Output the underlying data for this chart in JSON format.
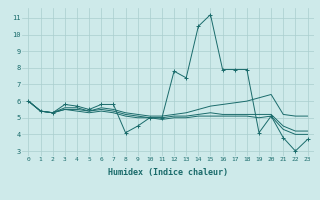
{
  "xlabel": "Humidex (Indice chaleur)",
  "bg_color": "#ceeaea",
  "grid_color": "#aacece",
  "line_color": "#1a6b6b",
  "xlim": [
    -0.5,
    23.5
  ],
  "ylim": [
    2.7,
    11.6
  ],
  "yticks": [
    3,
    4,
    5,
    6,
    7,
    8,
    9,
    10,
    11
  ],
  "xticks": [
    0,
    1,
    2,
    3,
    4,
    5,
    6,
    7,
    8,
    9,
    10,
    11,
    12,
    13,
    14,
    15,
    16,
    17,
    18,
    19,
    20,
    21,
    22,
    23
  ],
  "series": [
    {
      "x": [
        0,
        1,
        2,
        3,
        4,
        5,
        6,
        7,
        8,
        9,
        10,
        11,
        12,
        13,
        14,
        15,
        16,
        17,
        18,
        19,
        20,
        21,
        22,
        23
      ],
      "y": [
        6.0,
        5.4,
        5.3,
        5.8,
        5.7,
        5.5,
        5.8,
        5.8,
        4.1,
        4.5,
        5.0,
        5.0,
        7.8,
        7.4,
        10.5,
        11.2,
        7.9,
        7.9,
        7.9,
        4.1,
        5.1,
        3.8,
        3.0,
        3.7
      ],
      "marker": "+"
    },
    {
      "x": [
        0,
        1,
        2,
        3,
        4,
        5,
        6,
        7,
        8,
        9,
        10,
        11,
        12,
        13,
        14,
        15,
        16,
        17,
        18,
        19,
        20,
        21,
        22,
        23
      ],
      "y": [
        6.0,
        5.4,
        5.3,
        5.6,
        5.6,
        5.4,
        5.6,
        5.5,
        5.3,
        5.2,
        5.1,
        5.1,
        5.2,
        5.3,
        5.5,
        5.7,
        5.8,
        5.9,
        6.0,
        6.2,
        6.4,
        5.2,
        5.1,
        5.1
      ],
      "marker": null
    },
    {
      "x": [
        0,
        1,
        2,
        3,
        4,
        5,
        6,
        7,
        8,
        9,
        10,
        11,
        12,
        13,
        14,
        15,
        16,
        17,
        18,
        19,
        20,
        21,
        22,
        23
      ],
      "y": [
        6.0,
        5.4,
        5.3,
        5.5,
        5.5,
        5.4,
        5.5,
        5.4,
        5.2,
        5.1,
        5.0,
        5.0,
        5.1,
        5.1,
        5.2,
        5.3,
        5.2,
        5.2,
        5.2,
        5.2,
        5.2,
        4.5,
        4.2,
        4.2
      ],
      "marker": null
    },
    {
      "x": [
        0,
        1,
        2,
        3,
        4,
        5,
        6,
        7,
        8,
        9,
        10,
        11,
        12,
        13,
        14,
        15,
        16,
        17,
        18,
        19,
        20,
        21,
        22,
        23
      ],
      "y": [
        6.0,
        5.4,
        5.3,
        5.5,
        5.4,
        5.3,
        5.4,
        5.3,
        5.1,
        5.0,
        5.0,
        4.9,
        5.0,
        5.0,
        5.1,
        5.1,
        5.1,
        5.1,
        5.1,
        5.0,
        5.1,
        4.3,
        4.0,
        4.0
      ],
      "marker": null
    }
  ]
}
